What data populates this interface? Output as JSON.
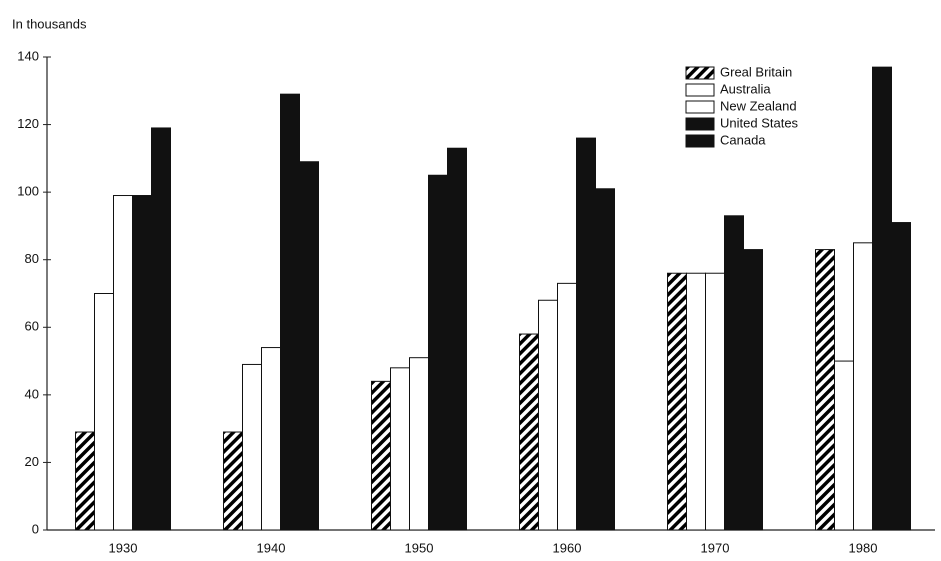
{
  "chart_data": {
    "type": "bar",
    "y_label": "In thousands",
    "categories": [
      "1930",
      "1940",
      "1950",
      "1960",
      "1970",
      "1980"
    ],
    "series": [
      {
        "name": "Greal Britain",
        "color": "#000000",
        "pattern": "hatch",
        "values": [
          29,
          29,
          44,
          58,
          76,
          83
        ]
      },
      {
        "name": "Australia",
        "color": "#ffffff",
        "values": [
          70,
          49,
          48,
          68,
          76,
          50
        ]
      },
      {
        "name": "New Zealand",
        "color": "#ffffff",
        "values": [
          99,
          54,
          51,
          73,
          76,
          85
        ]
      },
      {
        "name": "United States",
        "color": "#111111",
        "values": [
          99,
          129,
          105,
          116,
          93,
          137
        ]
      },
      {
        "name": "Canada",
        "color": "#111111",
        "values": [
          119,
          109,
          113,
          101,
          83,
          91
        ]
      }
    ],
    "ylim": [
      0,
      140
    ],
    "yticks": [
      0,
      20,
      40,
      60,
      80,
      100,
      120,
      140
    ],
    "grid": false,
    "legend": "top-right"
  }
}
